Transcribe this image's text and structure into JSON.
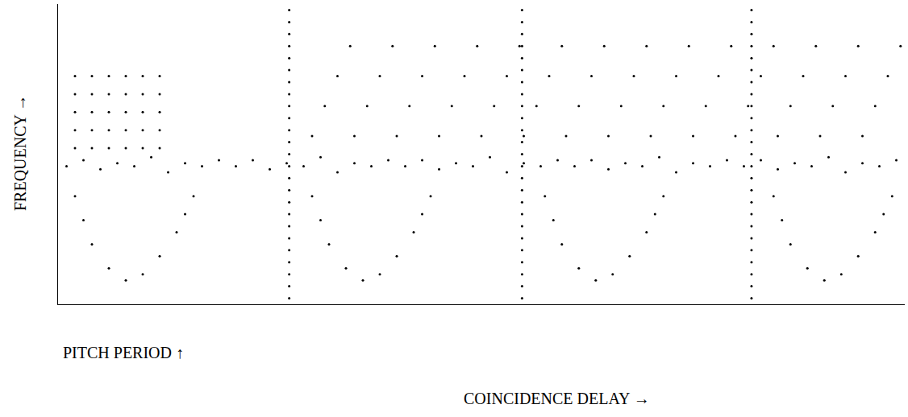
{
  "chart_data": {
    "type": "scatter",
    "xlabel": "COINCIDENCE DELAY →",
    "ylabel": "FREQUENCY →",
    "annotations": [
      "PITCH PERIOD ↑"
    ],
    "color": "#000000",
    "marker": "dot",
    "grid": false,
    "tick_labels": false,
    "xlim": [
      0,
      100
    ],
    "ylim": [
      0,
      100
    ],
    "xticks": [],
    "yticks": [],
    "x": [
      27.3,
      27.3,
      27.3,
      27.3,
      27.3,
      27.3,
      27.3,
      27.3,
      27.3,
      27.3,
      27.3,
      27.3,
      27.3,
      27.3,
      27.3,
      27.3,
      27.3,
      27.3,
      27.3,
      27.3,
      27.3,
      27.3,
      27.3,
      27.3,
      27.3,
      54.8,
      54.8,
      54.8,
      54.8,
      54.8,
      54.8,
      54.8,
      54.8,
      54.8,
      54.8,
      54.8,
      54.8,
      54.8,
      54.8,
      54.8,
      54.8,
      54.8,
      54.8,
      54.8,
      54.8,
      54.8,
      54.8,
      54.8,
      54.8,
      54.8,
      81.9,
      81.9,
      81.9,
      81.9,
      81.9,
      81.9,
      81.9,
      81.9,
      81.9,
      81.9,
      81.9,
      81.9,
      81.9,
      81.9,
      81.9,
      81.9,
      81.9,
      81.9,
      81.9,
      81.9,
      81.9,
      81.9,
      81.9,
      81.9,
      81.9,
      1,
      3,
      5,
      7,
      9,
      11,
      13,
      15,
      17,
      19,
      21,
      23,
      25,
      27,
      29,
      31,
      33,
      35,
      37,
      39,
      41,
      43,
      45,
      47,
      49,
      51,
      53,
      55,
      57,
      59,
      61,
      63,
      65,
      67,
      69,
      71,
      73,
      75,
      77,
      79,
      81,
      83,
      85,
      87,
      89,
      91,
      93,
      95,
      97,
      99,
      30,
      31.5,
      33,
      34.5,
      35,
      36.5,
      38,
      39.5,
      40,
      41.5,
      43,
      44.5,
      45,
      46.5,
      48,
      49.5,
      50,
      51.5,
      53,
      54.5,
      55,
      56.5,
      58,
      59.5,
      60,
      61.5,
      63,
      64.5,
      65,
      66.5,
      68,
      69.5,
      70,
      71.5,
      73,
      74.5,
      75,
      76.5,
      78,
      79.5,
      80,
      81.5,
      83,
      84.5,
      85,
      86.5,
      88,
      89.5,
      90,
      91.5,
      93,
      94.5,
      95,
      96.5,
      98,
      99.5,
      2,
      2,
      2,
      2,
      2,
      4,
      4,
      4,
      4,
      4,
      6,
      6,
      6,
      6,
      6,
      8,
      8,
      8,
      8,
      8,
      10,
      10,
      10,
      10,
      10,
      12,
      12,
      12,
      12,
      12,
      2,
      3,
      4,
      6,
      8,
      10,
      12,
      14,
      15,
      16,
      30,
      31,
      32,
      34,
      36,
      38,
      40,
      42,
      43,
      44,
      57.5,
      58.5,
      59.5,
      61.5,
      63.5,
      65.5,
      67.5,
      69.5,
      70.5,
      71.5,
      84.5,
      85.5,
      86.5,
      88.5,
      90.5,
      92.5,
      94.5,
      96.5,
      97.5,
      98.5
    ],
    "values": [
      2,
      6,
      10,
      14,
      18,
      22,
      26,
      30,
      34,
      38,
      42,
      46,
      50,
      54,
      58,
      62,
      66,
      70,
      74,
      78,
      82,
      86,
      90,
      94,
      98,
      2,
      6,
      10,
      14,
      18,
      22,
      26,
      30,
      34,
      38,
      42,
      46,
      50,
      54,
      58,
      62,
      66,
      70,
      74,
      78,
      82,
      86,
      90,
      94,
      98,
      2,
      6,
      10,
      14,
      18,
      22,
      26,
      30,
      34,
      38,
      42,
      46,
      50,
      54,
      58,
      62,
      66,
      70,
      74,
      78,
      82,
      86,
      90,
      94,
      98,
      46,
      48,
      45,
      47,
      46,
      49,
      44,
      47,
      46,
      48,
      46,
      48,
      45,
      47,
      46,
      49,
      44,
      47,
      46,
      48,
      46,
      48,
      45,
      47,
      46,
      49,
      44,
      47,
      46,
      48,
      46,
      48,
      45,
      47,
      46,
      49,
      44,
      47,
      46,
      48,
      46,
      48,
      45,
      47,
      46,
      49,
      44,
      47,
      46,
      48,
      56,
      66,
      76,
      86,
      56,
      66,
      76,
      86,
      56,
      66,
      76,
      86,
      56,
      66,
      76,
      86,
      56,
      66,
      76,
      86,
      56,
      66,
      76,
      86,
      56,
      66,
      76,
      86,
      56,
      66,
      76,
      86,
      56,
      66,
      76,
      86,
      56,
      66,
      76,
      86,
      56,
      66,
      76,
      86,
      56,
      66,
      76,
      86,
      56,
      66,
      76,
      86,
      56,
      66,
      76,
      86,
      52,
      58,
      64,
      70,
      76,
      52,
      58,
      64,
      70,
      76,
      52,
      58,
      64,
      70,
      76,
      52,
      58,
      64,
      70,
      76,
      52,
      58,
      64,
      70,
      76,
      52,
      58,
      64,
      70,
      76,
      36,
      28,
      20,
      12,
      8,
      10,
      16,
      24,
      30,
      36,
      36,
      28,
      20,
      12,
      8,
      10,
      16,
      24,
      30,
      36,
      36,
      28,
      20,
      12,
      8,
      10,
      16,
      24,
      30,
      36,
      36,
      28,
      20,
      12,
      8,
      10,
      16,
      24,
      30,
      36
    ]
  }
}
